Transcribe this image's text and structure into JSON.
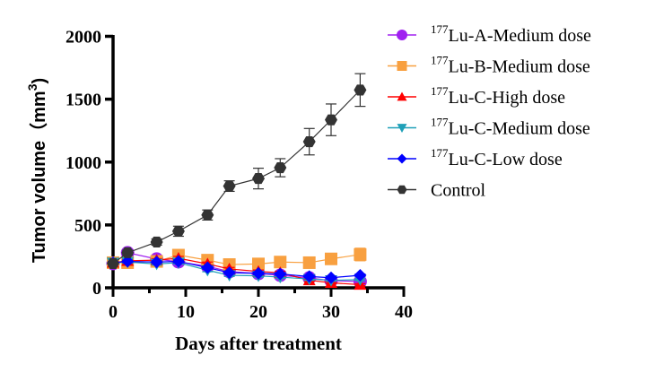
{
  "chart_data": {
    "type": "line",
    "title": "",
    "xlabel": "Days after treatment",
    "ylabel": "Tumor volume（mm",
    "ylabel_sup": "3",
    "ylabel_close": ")",
    "xlim": [
      0,
      40
    ],
    "ylim": [
      0,
      2000
    ],
    "xticks": [
      0,
      10,
      20,
      30,
      40
    ],
    "xtick_labels": [
      "0",
      "10",
      "20",
      "30",
      "40"
    ],
    "yticks": [
      0,
      500,
      1000,
      1500,
      2000
    ],
    "ytick_labels": [
      "0",
      "500",
      "1000",
      "1500",
      "2000"
    ],
    "x_minor_step": 5,
    "grid": false,
    "legend_position": "right",
    "x": [
      0,
      2,
      6,
      9,
      13,
      16,
      20,
      23,
      27,
      30,
      34
    ],
    "series": [
      {
        "name": "Lu-A-Medium dose",
        "sup": "177",
        "color": "#a020f0",
        "marker": "circle",
        "values": [
          193,
          279,
          229,
          207,
          171,
          129,
          114,
          100,
          79,
          57,
          50
        ],
        "errors": [
          10,
          15,
          15,
          15,
          15,
          12,
          12,
          10,
          10,
          10,
          10
        ]
      },
      {
        "name": "Lu-B-Medium dose",
        "sup": "177",
        "color": "#f8a040",
        "marker": "square",
        "values": [
          200,
          200,
          210,
          260,
          220,
          185,
          190,
          205,
          200,
          230,
          265
        ],
        "errors": [
          10,
          10,
          12,
          15,
          15,
          12,
          15,
          15,
          15,
          20,
          50
        ]
      },
      {
        "name": "Lu-C-High dose",
        "sup": "177",
        "color": "#ff0000",
        "marker": "triangle-up",
        "values": [
          200,
          215,
          220,
          235,
          190,
          150,
          130,
          120,
          60,
          40,
          25
        ],
        "errors": [
          10,
          12,
          12,
          15,
          15,
          12,
          12,
          12,
          10,
          8,
          8
        ]
      },
      {
        "name": "Lu-C-Medium dose",
        "sup": "177",
        "color": "#1fa0b8",
        "marker": "triangle-down",
        "values": [
          200,
          205,
          190,
          200,
          140,
          100,
          95,
          85,
          70,
          60,
          65
        ],
        "errors": [
          10,
          10,
          10,
          12,
          12,
          10,
          10,
          10,
          10,
          8,
          8
        ]
      },
      {
        "name": "Lu-C-Low dose",
        "sup": "177",
        "color": "#0000ff",
        "marker": "diamond",
        "values": [
          200,
          210,
          205,
          210,
          160,
          120,
          115,
          110,
          90,
          80,
          100
        ],
        "errors": [
          10,
          10,
          10,
          12,
          12,
          10,
          10,
          10,
          10,
          10,
          10
        ]
      },
      {
        "name": "Control",
        "sup": "",
        "color": "#333333",
        "marker": "hexagon",
        "values": [
          193,
          279,
          364,
          450,
          579,
          809,
          869,
          955,
          1162,
          1336,
          1573
        ],
        "errors": [
          10,
          20,
          25,
          40,
          40,
          42,
          82,
          72,
          105,
          126,
          130
        ]
      }
    ]
  }
}
